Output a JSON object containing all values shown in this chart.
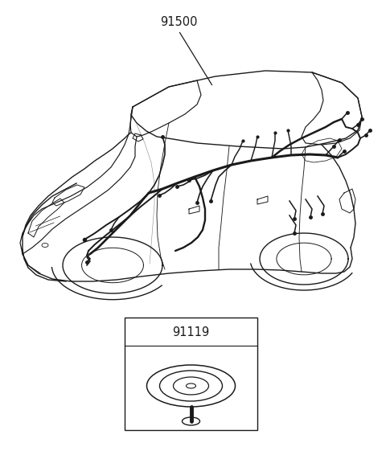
{
  "bg_color": "#ffffff",
  "fig_width": 4.8,
  "fig_height": 5.66,
  "dpi": 100,
  "label_91500": "91500",
  "label_91119": "91119",
  "line_color": "#1a1a1a",
  "text_color": "#1a1a1a",
  "font_size_label": 10.5
}
